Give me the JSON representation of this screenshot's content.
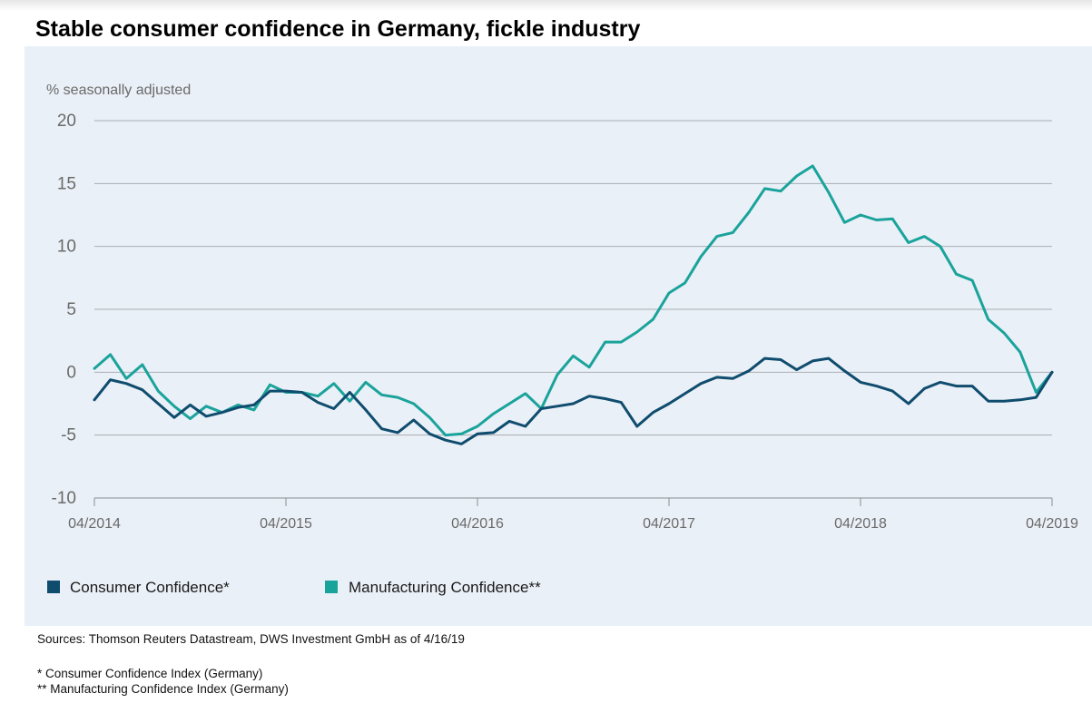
{
  "title": "Stable consumer confidence in Germany, fickle industry",
  "sources": "Sources: Thomson Reuters Datastream, DWS Investment GmbH as of 4/16/19",
  "footnotes": [
    "* Consumer Confidence Index (Germany)",
    "** Manufacturing Confidence Index (Germany)"
  ],
  "colors": {
    "background": "#eaf0f7",
    "consumer": "#0f4c6e",
    "manufacturing": "#1aa39b",
    "grid": "#a9adb3",
    "axis_text": "#6a6a6a"
  },
  "chart_data": {
    "type": "line",
    "ylabel": "% seasonally adjusted",
    "ylim": [
      -10,
      20
    ],
    "yticks": [
      20,
      15,
      10,
      5,
      0,
      -5,
      -10
    ],
    "xlim": [
      0,
      60
    ],
    "xticks": [
      {
        "pos": 0,
        "label": "04/2014"
      },
      {
        "pos": 12,
        "label": "04/2015"
      },
      {
        "pos": 24,
        "label": "04/2016"
      },
      {
        "pos": 36,
        "label": "04/2017"
      },
      {
        "pos": 48,
        "label": "04/2018"
      },
      {
        "pos": 60,
        "label": "04/2019"
      }
    ],
    "grid": true,
    "legend_position": "bottom-left",
    "series": [
      {
        "name": "Consumer Confidence*",
        "color": "#0f4c6e",
        "values": [
          -2.2,
          -0.6,
          -0.9,
          -1.4,
          -2.5,
          -3.6,
          -2.6,
          -3.5,
          -3.2,
          -2.8,
          -2.6,
          -1.5,
          -1.5,
          -1.6,
          -2.4,
          -2.9,
          -1.6,
          -3.0,
          -4.5,
          -4.8,
          -3.8,
          -4.9,
          -5.4,
          -5.7,
          -4.9,
          -4.8,
          -3.9,
          -4.3,
          -2.9,
          -2.7,
          -2.5,
          -1.9,
          -2.1,
          -2.4,
          -4.3,
          -3.2,
          -2.5,
          -1.7,
          -0.9,
          -0.4,
          -0.5,
          0.1,
          1.1,
          1.0,
          0.2,
          0.9,
          1.1,
          0.1,
          -0.8,
          -1.1,
          -1.5,
          -2.5,
          -1.3,
          -0.8,
          -1.1,
          -1.1,
          -2.3,
          -2.3,
          -2.2,
          -2.0,
          0.0
        ]
      },
      {
        "name": "Manufacturing Confidence**",
        "color": "#1aa39b",
        "values": [
          0.3,
          1.4,
          -0.5,
          0.6,
          -1.5,
          -2.7,
          -3.7,
          -2.7,
          -3.2,
          -2.6,
          -3.0,
          -1.0,
          -1.6,
          -1.6,
          -1.9,
          -0.9,
          -2.3,
          -0.8,
          -1.8,
          -2.0,
          -2.5,
          -3.6,
          -5.0,
          -4.9,
          -4.3,
          -3.3,
          -2.5,
          -1.7,
          -2.9,
          -0.2,
          1.3,
          0.4,
          2.4,
          2.4,
          3.2,
          4.2,
          6.3,
          7.1,
          9.2,
          10.8,
          11.1,
          12.7,
          14.6,
          14.4,
          15.6,
          16.4,
          14.3,
          11.9,
          12.5,
          12.1,
          12.2,
          10.3,
          10.8,
          10.0,
          7.8,
          7.3,
          4.2,
          3.1,
          1.6,
          -1.6,
          0.0
        ]
      }
    ]
  }
}
